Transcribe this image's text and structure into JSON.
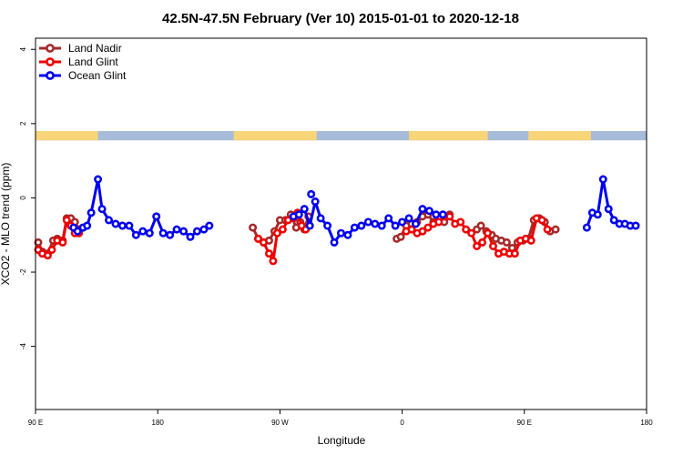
{
  "chart_data": {
    "type": "line",
    "title": "42.5N-47.5N February (Ver 10)   2015-01-01 to 2020-12-18",
    "xlabel": "Longitude",
    "ylabel": "XCO2 - MLO trend (ppm)",
    "xlim": [
      90,
      540
    ],
    "ylim": [
      -5.7,
      4.3
    ],
    "x_ticks": [
      {
        "value": 90,
        "label": "90 E"
      },
      {
        "value": 180,
        "label": "180"
      },
      {
        "value": 270,
        "label": "90 W"
      },
      {
        "value": 360,
        "label": "0"
      },
      {
        "value": 450,
        "label": "90 E"
      },
      {
        "value": 540,
        "label": "180"
      }
    ],
    "y_ticks": [
      {
        "value": -4,
        "label": "-4"
      },
      {
        "value": -2,
        "label": "-2"
      },
      {
        "value": 0,
        "label": "0"
      },
      {
        "value": 2,
        "label": "2"
      },
      {
        "value": 4,
        "label": "4"
      }
    ],
    "legend_position": "top-left",
    "land_ocean_strip": {
      "y_range": [
        1.55,
        1.8
      ],
      "land_color": "#f9d57a",
      "ocean_color": "#a7bcd8",
      "land_segments": [
        [
          90,
          136
        ],
        [
          236,
          297
        ],
        [
          365,
          423
        ],
        [
          453,
          499
        ]
      ]
    },
    "series": [
      {
        "name": "Land Nadir",
        "color": "#a52a2a",
        "segments": [
          [
            [
              92,
              -1.2
            ],
            [
              95,
              -1.45
            ],
            [
              99,
              -1.5
            ],
            [
              103,
              -1.15
            ],
            [
              106,
              -1.1
            ],
            [
              110,
              -1.15
            ],
            [
              113,
              -0.55
            ],
            [
              116,
              -0.55
            ],
            [
              119,
              -0.65
            ],
            [
              122,
              -0.85
            ],
            [
              125,
              -0.8
            ]
          ],
          [
            [
              250,
              -0.8
            ],
            [
              254,
              -1.1
            ],
            [
              258,
              -1.2
            ],
            [
              262,
              -1.15
            ],
            [
              266,
              -0.9
            ],
            [
              270,
              -0.6
            ],
            [
              274,
              -0.6
            ],
            [
              278,
              -0.45
            ],
            [
              282,
              -0.8
            ],
            [
              285,
              -0.65
            ],
            [
              288,
              -0.85
            ],
            [
              291,
              -0.5
            ]
          ],
          [
            [
              356,
              -1.1
            ],
            [
              359,
              -1.05
            ],
            [
              363,
              -0.75
            ],
            [
              367,
              -0.7
            ],
            [
              371,
              -0.65
            ],
            [
              375,
              -0.5
            ],
            [
              379,
              -0.45
            ],
            [
              383,
              -0.65
            ],
            [
              387,
              -0.55
            ],
            [
              391,
              -0.65
            ],
            [
              395,
              -0.45
            ]
          ],
          [
            [
              415,
              -0.85
            ],
            [
              418,
              -0.75
            ],
            [
              422,
              -0.9
            ],
            [
              426,
              -1.0
            ],
            [
              429,
              -1.1
            ],
            [
              433,
              -1.15
            ],
            [
              437,
              -1.2
            ],
            [
              441,
              -1.35
            ],
            [
              445,
              -1.2
            ],
            [
              449,
              -1.15
            ],
            [
              453,
              -1.1
            ],
            [
              457,
              -0.6
            ],
            [
              461,
              -0.55
            ],
            [
              465,
              -0.65
            ],
            [
              469,
              -0.9
            ],
            [
              473,
              -0.85
            ]
          ]
        ]
      },
      {
        "name": "Land Glint",
        "color": "#ee0000",
        "segments": [
          [
            [
              92,
              -1.4
            ],
            [
              95,
              -1.5
            ],
            [
              99,
              -1.55
            ],
            [
              102,
              -1.4
            ],
            [
              106,
              -1.15
            ],
            [
              110,
              -1.2
            ],
            [
              113,
              -0.6
            ],
            [
              116,
              -0.75
            ],
            [
              119,
              -0.95
            ],
            [
              122,
              -0.95
            ]
          ],
          [
            [
              254,
              -1.1
            ],
            [
              258,
              -1.2
            ],
            [
              262,
              -1.5
            ],
            [
              265,
              -1.7
            ],
            [
              268,
              -0.95
            ],
            [
              272,
              -0.85
            ],
            [
              276,
              -0.6
            ],
            [
              280,
              -0.55
            ],
            [
              283,
              -0.4
            ],
            [
              286,
              -0.75
            ],
            [
              289,
              -0.85
            ]
          ],
          [
            [
              363,
              -0.9
            ],
            [
              367,
              -0.85
            ],
            [
              371,
              -0.95
            ],
            [
              375,
              -0.9
            ],
            [
              379,
              -0.8
            ],
            [
              383,
              -0.7
            ],
            [
              387,
              -0.65
            ],
            [
              391,
              -0.5
            ],
            [
              395,
              -0.5
            ],
            [
              399,
              -0.7
            ],
            [
              403,
              -0.65
            ],
            [
              407,
              -0.85
            ],
            [
              411,
              -0.95
            ],
            [
              415,
              -1.3
            ],
            [
              419,
              -1.2
            ],
            [
              423,
              -0.95
            ],
            [
              427,
              -1.3
            ],
            [
              431,
              -1.5
            ],
            [
              435,
              -1.45
            ],
            [
              439,
              -1.5
            ],
            [
              443,
              -1.5
            ],
            [
              447,
              -1.15
            ],
            [
              451,
              -1.1
            ],
            [
              455,
              -1.15
            ],
            [
              459,
              -0.55
            ],
            [
              463,
              -0.6
            ],
            [
              467,
              -0.85
            ]
          ]
        ]
      },
      {
        "name": "Ocean Glint",
        "color": "#0000ee",
        "segments": [
          [
            [
              118,
              -0.8
            ],
            [
              121,
              -0.9
            ],
            [
              125,
              -0.8
            ],
            [
              128,
              -0.75
            ],
            [
              131,
              -0.4
            ],
            [
              136,
              0.5
            ],
            [
              139,
              -0.3
            ],
            [
              144,
              -0.6
            ],
            [
              149,
              -0.7
            ],
            [
              154,
              -0.75
            ],
            [
              159,
              -0.75
            ],
            [
              164,
              -1.0
            ],
            [
              169,
              -0.9
            ],
            [
              174,
              -0.95
            ],
            [
              179,
              -0.5
            ],
            [
              184,
              -0.95
            ],
            [
              189,
              -1.0
            ],
            [
              194,
              -0.85
            ],
            [
              199,
              -0.9
            ],
            [
              204,
              -1.05
            ],
            [
              209,
              -0.9
            ],
            [
              214,
              -0.85
            ],
            [
              218,
              -0.75
            ]
          ],
          [
            [
              280,
              -0.5
            ],
            [
              284,
              -0.45
            ],
            [
              288,
              -0.3
            ],
            [
              292,
              -0.75
            ],
            [
              296,
              -0.1
            ],
            [
              300,
              -0.55
            ],
            [
              305,
              -0.75
            ],
            [
              310,
              -1.2
            ],
            [
              315,
              -0.95
            ],
            [
              320,
              -1.0
            ],
            [
              325,
              -0.8
            ],
            [
              330,
              -0.75
            ],
            [
              335,
              -0.65
            ],
            [
              340,
              -0.7
            ],
            [
              345,
              -0.75
            ],
            [
              350,
              -0.55
            ],
            [
              355,
              -0.75
            ],
            [
              360,
              -0.65
            ],
            [
              365,
              -0.55
            ],
            [
              370,
              -0.7
            ],
            [
              375,
              -0.3
            ],
            [
              380,
              -0.35
            ],
            [
              385,
              -0.45
            ],
            [
              390,
              -0.45
            ]
          ],
          [
            [
              496,
              -0.8
            ],
            [
              500,
              -0.4
            ],
            [
              504,
              -0.45
            ],
            [
              508,
              0.5
            ],
            [
              512,
              -0.3
            ],
            [
              516,
              -0.6
            ],
            [
              520,
              -0.7
            ],
            [
              524,
              -0.7
            ],
            [
              528,
              -0.75
            ],
            [
              532,
              -0.75
            ]
          ]
        ],
        "isolated_points": [
          [
            293,
            0.1
          ]
        ]
      }
    ]
  }
}
